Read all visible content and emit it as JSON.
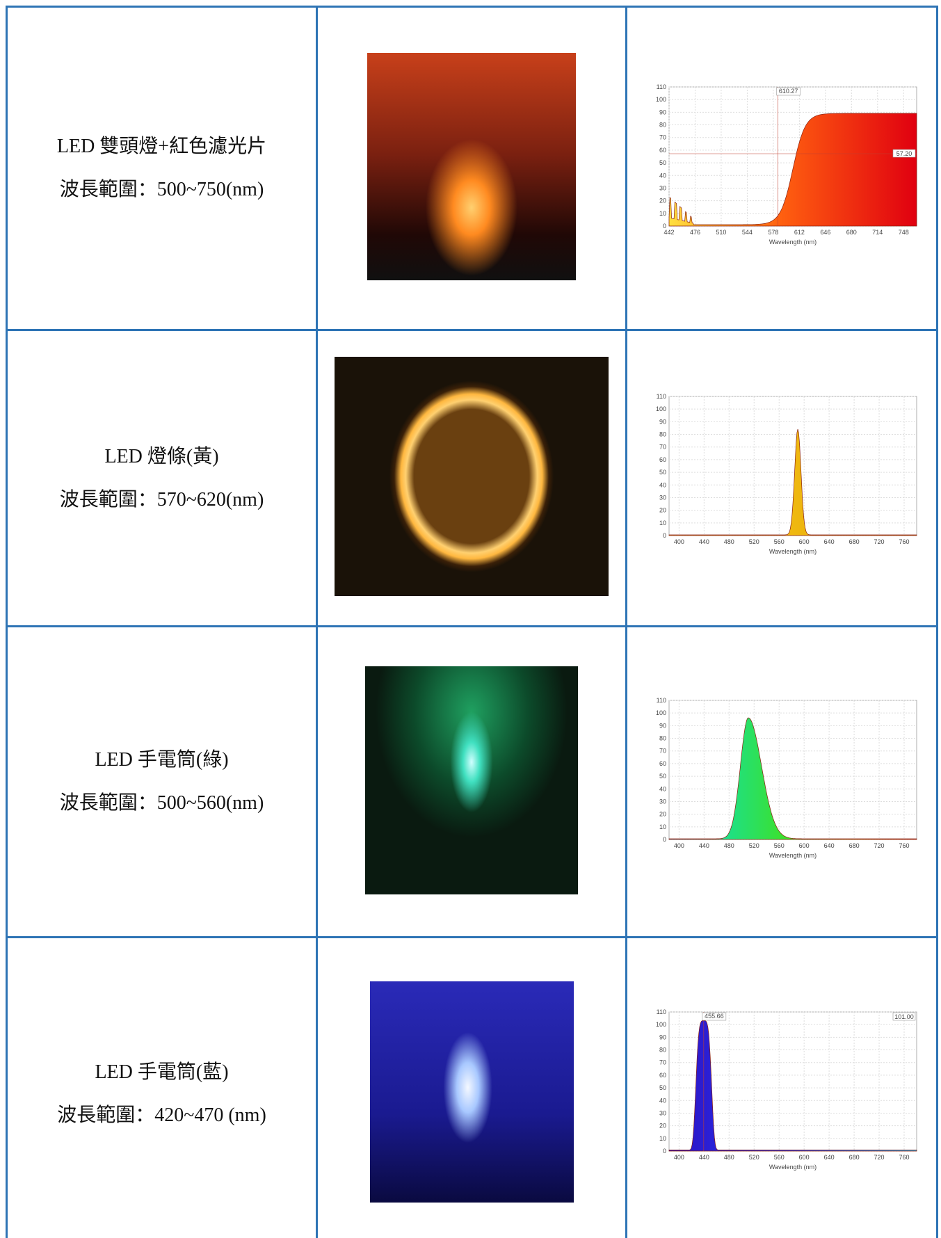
{
  "table": {
    "rows": [
      {
        "label": "LED 雙頭燈+紅色濾光片",
        "range": "波長範圍：500~750(nm)",
        "spectrum": {
          "yticks": [
            0,
            10,
            20,
            30,
            40,
            50,
            60,
            70,
            80,
            90,
            100,
            110
          ],
          "xticks": [
            442,
            476,
            510,
            544,
            578,
            612,
            646,
            680,
            714,
            748
          ],
          "x_label": "Wavelength (nm)",
          "annotations": [
            "610.27",
            "57.20"
          ]
        }
      },
      {
        "label": "LED 燈條(黃)",
        "range": "波長範圍：570~620(nm)",
        "spectrum": {
          "yticks": [
            0,
            10,
            20,
            30,
            40,
            50,
            60,
            70,
            80,
            90,
            100,
            110
          ],
          "xticks": [
            400,
            440,
            480,
            520,
            560,
            600,
            640,
            680,
            720,
            760
          ],
          "x_label": "Wavelength (nm)",
          "annotations": []
        }
      },
      {
        "label": "LED 手電筒(綠)",
        "range": "波長範圍：500~560(nm)",
        "spectrum": {
          "yticks": [
            0,
            10,
            20,
            30,
            40,
            50,
            60,
            70,
            80,
            90,
            100,
            110
          ],
          "xticks": [
            400,
            440,
            480,
            520,
            560,
            600,
            640,
            680,
            720,
            760
          ],
          "x_label": "Wavelength (nm)",
          "annotations": []
        }
      },
      {
        "label": "LED 手電筒(藍)",
        "range": "波長範圍：420~470 (nm)",
        "spectrum": {
          "yticks": [
            0,
            10,
            20,
            30,
            40,
            50,
            60,
            70,
            80,
            90,
            100,
            110
          ],
          "xticks": [
            400,
            440,
            480,
            520,
            560,
            600,
            640,
            680,
            720,
            760
          ],
          "x_label": "Wavelength (nm)",
          "annotations": [
            "455.66",
            "101.00"
          ]
        }
      }
    ]
  }
}
